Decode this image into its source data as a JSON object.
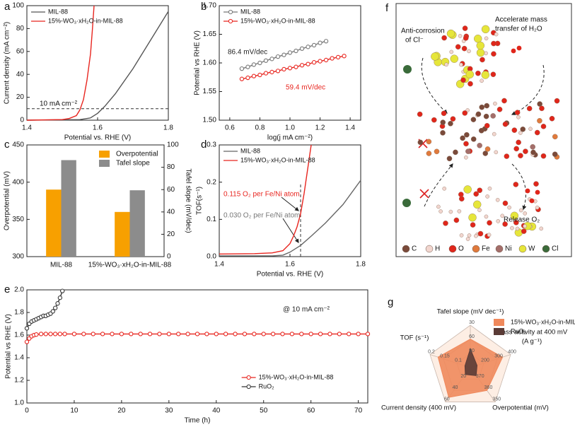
{
  "chart_data": [
    {
      "panel_label": "a",
      "type": "line",
      "x_label": "Potential vs. RHE (V)",
      "y_label": "Current density (mA cm⁻²)",
      "xlim": [
        1.4,
        1.8
      ],
      "xticks": [
        1.4,
        1.6,
        1.8
      ],
      "ylim": [
        0,
        100
      ],
      "yticks": [
        0,
        20,
        40,
        60,
        80,
        100
      ],
      "hline": 10,
      "hline_label": "10 mA cm⁻²",
      "legend": "upper left",
      "series": [
        {
          "name": "MIL-88",
          "color": "#555555",
          "x": [
            1.4,
            1.55,
            1.58,
            1.6,
            1.62,
            1.65,
            1.7,
            1.75,
            1.8
          ],
          "values": [
            0,
            0.5,
            2,
            6,
            12,
            23,
            45,
            70,
            95
          ]
        },
        {
          "name": "15%-WO₃·xH₂O-in-MIL-88",
          "color": "#e8251f",
          "x": [
            1.4,
            1.5,
            1.52,
            1.54,
            1.55,
            1.56,
            1.57,
            1.58,
            1.585,
            1.59
          ],
          "values": [
            0,
            0.5,
            1.5,
            4,
            9,
            18,
            35,
            58,
            78,
            100
          ]
        }
      ]
    },
    {
      "panel_label": "b",
      "type": "line",
      "marker": true,
      "x_label": "log(j mA cm⁻²)",
      "y_label": "Potential vs RHE (V)",
      "xlim": [
        0.53,
        1.47
      ],
      "xticks": [
        0.6,
        0.8,
        {
          "value": 1,
          "label": "1.0"
        },
        1.2,
        1.4
      ],
      "ylim": [
        1.5,
        1.7
      ],
      "yticks": [
        {
          "value": 1.5,
          "label": "1.50"
        },
        1.55,
        {
          "value": 1.6,
          "label": "1.60"
        },
        1.65,
        {
          "value": 1.7,
          "label": "1.70"
        }
      ],
      "annotations": [
        "86.4 mV/dec",
        "59.4 mV/dec"
      ],
      "legend": "upper left",
      "series": [
        {
          "name": "MIL-88",
          "color": "#777777",
          "x": [
            0.68,
            0.72,
            0.76,
            0.8,
            0.84,
            0.88,
            0.92,
            0.96,
            1.0,
            1.04,
            1.08,
            1.12,
            1.16,
            1.2,
            1.24
          ],
          "values": [
            1.59,
            1.593,
            1.597,
            1.6,
            1.604,
            1.607,
            1.611,
            1.614,
            1.618,
            1.621,
            1.625,
            1.628,
            1.631,
            1.635,
            1.638
          ]
        },
        {
          "name": "15%-WO₃·xH₂O-in-MIL-88",
          "color": "#e8251f",
          "x": [
            0.68,
            0.72,
            0.76,
            0.8,
            0.84,
            0.88,
            0.92,
            0.96,
            1.0,
            1.04,
            1.08,
            1.12,
            1.16,
            1.2,
            1.24,
            1.28,
            1.32,
            1.36
          ],
          "values": [
            1.572,
            1.574,
            1.577,
            1.579,
            1.582,
            1.584,
            1.586,
            1.589,
            1.591,
            1.593,
            1.596,
            1.598,
            1.601,
            1.603,
            1.605,
            1.608,
            1.61,
            1.612
          ]
        }
      ]
    },
    {
      "panel_label": "c",
      "type": "bar",
      "categories": [
        "MIL-88",
        "15%-WO₃·xH₂O-in-MIL-88"
      ],
      "y_label": "Overpotential (mV)",
      "y2_label": "Tafel slope (mV/dec)",
      "ylim": [
        300,
        450
      ],
      "yticks": [
        300,
        350,
        400,
        450
      ],
      "y2lim": [
        0,
        100
      ],
      "y2ticks": [
        0,
        20,
        40,
        60,
        80,
        100
      ],
      "legend": "upper right",
      "series": [
        {
          "name": "Overpotential",
          "color": "#f7a000",
          "values": [
            390,
            360
          ]
        },
        {
          "name": "Tafel slope",
          "color": "#8c8c8c",
          "axis": "y2",
          "values": [
            86.4,
            59.4
          ]
        }
      ]
    },
    {
      "panel_label": "d",
      "type": "line",
      "x_label": "Potential vs. RHE (V)",
      "y_label": "TOF(s⁻¹)",
      "xlim": [
        1.4,
        1.8
      ],
      "xticks": [
        1.4,
        1.6,
        1.8
      ],
      "ylim": [
        0,
        0.3
      ],
      "yticks": [
        {
          "value": 0,
          "label": "0.0"
        },
        0.1,
        0.2,
        0.3
      ],
      "vline": 1.63,
      "annotations": [
        "0.115 O₂ per Fe/Ni atom",
        "0.030 O₂ per Fe/Ni atom"
      ],
      "legend": "upper left",
      "series": [
        {
          "name": "MIL-88",
          "color": "#666666",
          "x": [
            1.4,
            1.55,
            1.58,
            1.6,
            1.63,
            1.66,
            1.7,
            1.75,
            1.8
          ],
          "values": [
            0.002,
            0.002,
            0.004,
            0.012,
            0.03,
            0.055,
            0.09,
            0.14,
            0.205
          ]
        },
        {
          "name": "15%-WO₃·xH₂O-in-MIL-88",
          "color": "#e8251f",
          "x": [
            1.4,
            1.5,
            1.55,
            1.58,
            1.6,
            1.61,
            1.62,
            1.63,
            1.64,
            1.65,
            1.66
          ],
          "values": [
            0.007,
            0.008,
            0.01,
            0.016,
            0.035,
            0.055,
            0.08,
            0.115,
            0.17,
            0.235,
            0.3
          ]
        }
      ]
    },
    {
      "panel_label": "e",
      "type": "line",
      "marker": true,
      "x_label": "Time (h)",
      "y_label": "Potential vs RHE (V)",
      "xlim": [
        0,
        72
      ],
      "xticks": [
        0,
        10,
        20,
        30,
        40,
        50,
        60,
        70
      ],
      "ylim": [
        1,
        2
      ],
      "yticks": [
        {
          "value": 1,
          "label": "1.0"
        },
        1.2,
        1.4,
        1.6,
        1.8,
        {
          "value": 2,
          "label": "2.0"
        }
      ],
      "annotations": [
        "@ 10 mA cm⁻²"
      ],
      "legend": "lower right",
      "series": [
        {
          "name": "15%-WO₃·xH₂O-in-MIL-88",
          "color": "#e8251f",
          "x": [
            0,
            0.5,
            1,
            1.5,
            2,
            3,
            4,
            5,
            6,
            7,
            8,
            10,
            12,
            14,
            16,
            18,
            20,
            22,
            24,
            26,
            28,
            30,
            32,
            34,
            36,
            38,
            40,
            42,
            44,
            46,
            48,
            50,
            52,
            54,
            56,
            58,
            60,
            62,
            64,
            66,
            68,
            70,
            72
          ],
          "values": [
            1.54,
            1.57,
            1.59,
            1.6,
            1.605,
            1.61,
            1.61,
            1.61,
            1.61,
            1.61,
            1.61,
            1.61,
            1.61,
            1.61,
            1.61,
            1.61,
            1.61,
            1.61,
            1.61,
            1.61,
            1.61,
            1.61,
            1.61,
            1.61,
            1.61,
            1.61,
            1.61,
            1.61,
            1.61,
            1.61,
            1.61,
            1.61,
            1.61,
            1.61,
            1.61,
            1.61,
            1.61,
            1.61,
            1.61,
            1.61,
            1.61,
            1.61,
            1.61
          ]
        },
        {
          "name": "RuO₂",
          "color": "#333333",
          "x": [
            0,
            0.5,
            1,
            1.5,
            2,
            2.5,
            3,
            3.5,
            4,
            4.5,
            5,
            5.5,
            6,
            6.5,
            7,
            7.5
          ],
          "values": [
            1.66,
            1.7,
            1.72,
            1.73,
            1.74,
            1.75,
            1.76,
            1.77,
            1.77,
            1.78,
            1.79,
            1.81,
            1.84,
            1.88,
            1.93,
            1.99
          ]
        }
      ]
    },
    {
      "panel_label": "g",
      "type": "radar",
      "legend": "upper right",
      "axes": [
        {
          "label": "Tafel slope (mV dec⁻¹)",
          "lim": [
            120,
            30
          ],
          "ticks": [
            90,
            60,
            30
          ]
        },
        {
          "label": [
            "Mass activity at 400 mV",
            "(A g⁻¹)"
          ],
          "lim": [
            100,
            400
          ],
          "ticks": [
            200,
            300,
            400
          ]
        },
        {
          "label": "Overpotential (mV)",
          "lim": [
            380,
            350
          ],
          "ticks": [
            370,
            360,
            350
          ]
        },
        {
          "label": "Current density (400 mV)",
          "lim": [
            0,
            60
          ],
          "ticks": [
            20,
            40,
            60
          ]
        },
        {
          "label": "TOF (s⁻¹)",
          "lim": [
            0.05,
            0.2
          ],
          "ticks": [
            0.1,
            0.15,
            0.2
          ]
        }
      ],
      "series": [
        {
          "name": "15%-WO₃·xH₂O-in-MIL-88",
          "color": "#f0895c",
          "values": [
            59.4,
            340,
            360,
            52,
            0.17
          ]
        },
        {
          "name": "RuO₂",
          "color": "#5a3b36",
          "values": [
            80,
            150,
            373,
            12,
            0.07
          ]
        }
      ]
    }
  ],
  "diagram": {
    "panel_label": "f",
    "annotations": [
      [
        "Anti-corrosion",
        "of Cl⁻"
      ],
      [
        "Accelerate mass",
        "transfer of H₂O"
      ],
      [
        "Release O₂"
      ]
    ],
    "legend": [
      {
        "label": "C",
        "color": "#7a4a3a"
      },
      {
        "label": "H",
        "color": "#f2d6cf"
      },
      {
        "label": "O",
        "color": "#e0261b"
      },
      {
        "label": "Fe",
        "color": "#e07a3c"
      },
      {
        "label": "Ni",
        "color": "#a46e6a"
      },
      {
        "label": "W",
        "color": "#e6e63a"
      },
      {
        "label": "Cl",
        "color": "#3a6b3a"
      }
    ]
  }
}
